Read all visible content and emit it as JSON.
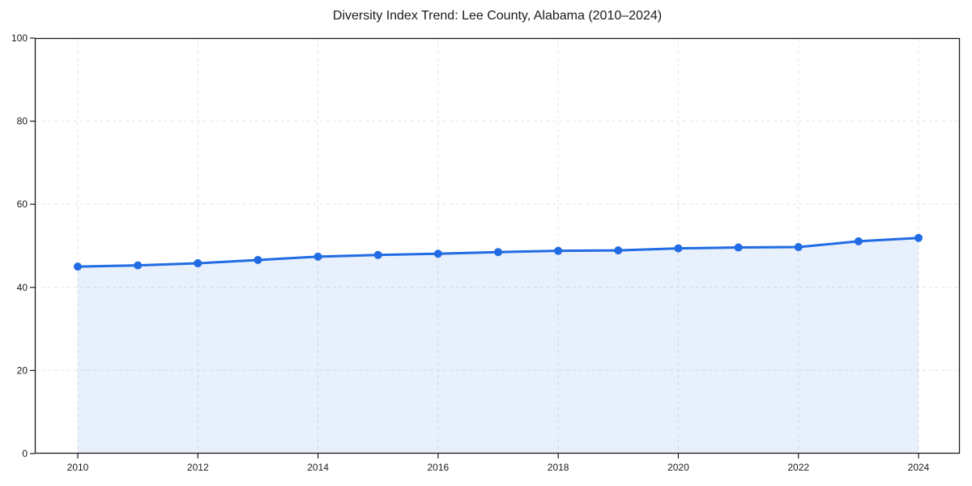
{
  "chart_data": {
    "type": "line",
    "title": "Diversity Index Trend: Lee County, Alabama (2010–2024)",
    "x": [
      2010,
      2011,
      2012,
      2013,
      2014,
      2015,
      2016,
      2017,
      2018,
      2019,
      2020,
      2021,
      2022,
      2023,
      2024
    ],
    "series": [
      {
        "name": "Diversity Index",
        "values": [
          45.0,
          45.3,
          45.8,
          46.6,
          47.4,
          47.8,
          48.1,
          48.5,
          48.8,
          48.9,
          49.4,
          49.6,
          49.7,
          51.1,
          51.9
        ]
      }
    ],
    "xlabel": "",
    "ylabel": "",
    "xlim": [
      2010,
      2024
    ],
    "ylim": [
      0,
      100
    ],
    "xticks": [
      2010,
      2012,
      2014,
      2016,
      2018,
      2020,
      2022,
      2024
    ],
    "yticks": [
      0,
      20,
      40,
      60,
      80,
      100
    ],
    "grid": true,
    "grid_style": "dashed",
    "legend": false,
    "area_fill": true,
    "colors": {
      "line": "#216be4",
      "marker": "#216be4",
      "fill": "rgba(33,107,228,0.10)",
      "grid": "#e3e3e3",
      "axis": "#1a1a1a",
      "text": "#1a1a1a",
      "background": "#ffffff"
    },
    "marker": {
      "shape": "circle",
      "radius": 5
    },
    "line_width": 3
  }
}
